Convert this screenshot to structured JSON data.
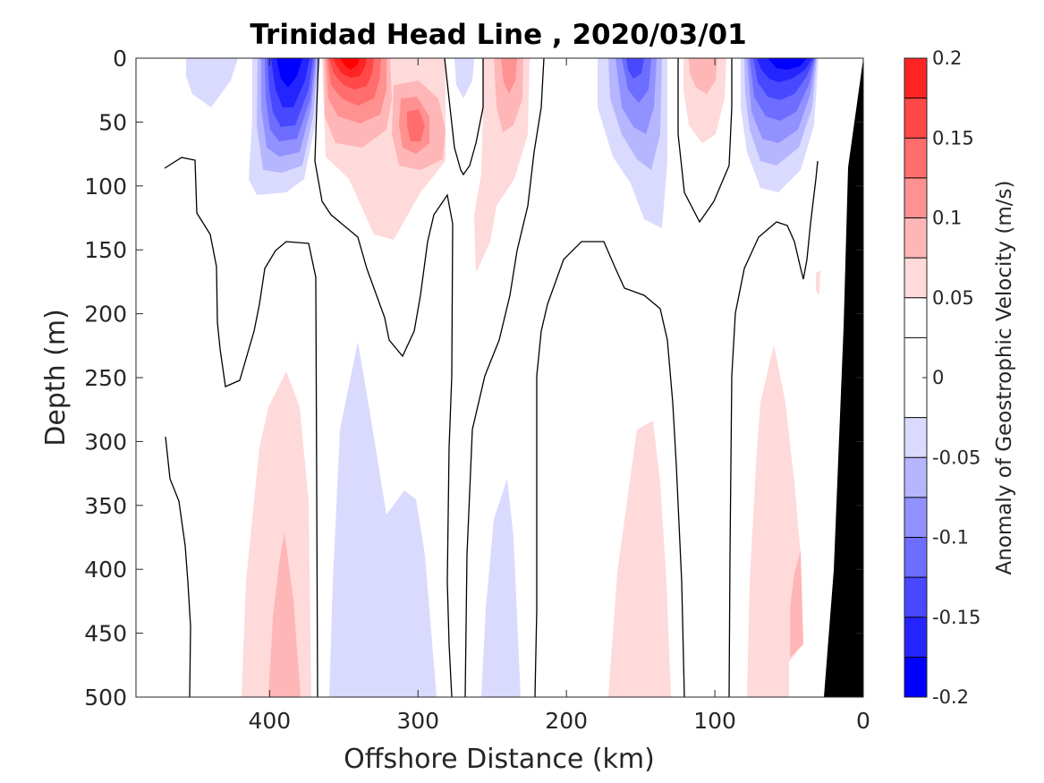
{
  "chart_data": {
    "type": "contourf",
    "title": "Trinidad Head Line , 2020/03/01",
    "xlabel": "Offshore Distance (km)",
    "ylabel": "Depth (m)",
    "colorbar_label": "Anomaly of Geostrophic Velocity (m/s)",
    "xlim": [
      490,
      0
    ],
    "ylim": [
      0,
      500
    ],
    "x_ticks": [
      400,
      300,
      200,
      100,
      0
    ],
    "x_tick_labels": [
      "400",
      "300",
      "200",
      "100",
      "0"
    ],
    "y_ticks": [
      0,
      50,
      100,
      150,
      200,
      250,
      300,
      350,
      400,
      450,
      500
    ],
    "y_tick_labels": [
      "0",
      "50",
      "100",
      "150",
      "200",
      "250",
      "300",
      "350",
      "400",
      "450",
      "500"
    ],
    "colorbar": {
      "range": [
        -0.2,
        0.2
      ],
      "levels": [
        -0.2,
        -0.175,
        -0.15,
        -0.125,
        -0.1,
        -0.075,
        -0.05,
        -0.025,
        0.025,
        0.05,
        0.075,
        0.1,
        0.125,
        0.15,
        0.175,
        0.2
      ],
      "ticks": [
        0.2,
        0.15,
        0.1,
        0.05,
        0,
        -0.05,
        -0.1,
        -0.15,
        -0.2
      ],
      "tick_labels": [
        "0.2",
        "0.15",
        "0.1",
        "0.05",
        "0",
        "-0.05",
        "-0.1",
        "-0.15",
        "-0.2"
      ],
      "colors": [
        "#0000ff",
        "#2424ff",
        "#4848ff",
        "#6d6dff",
        "#9191ff",
        "#b6b6ff",
        "#dadaff",
        "#ffffff",
        "#ffffff",
        "#ffdada",
        "#ffb6b6",
        "#ff9191",
        "#ff6d6d",
        "#ff4848",
        "#ff2424",
        "#ff0000"
      ],
      "contour_line_level": 0
    },
    "bathymetry_color": "#000000",
    "bathymetry": [
      [
        0,
        0
      ],
      [
        12,
        85
      ],
      [
        15,
        210
      ],
      [
        22,
        400
      ],
      [
        26,
        500
      ],
      [
        0,
        500
      ]
    ],
    "features": [
      {
        "sign": "negative",
        "center": [
          387,
          20
        ],
        "peak": -0.19,
        "depth_range": [
          0,
          105
        ],
        "x_range": [
          340,
          410
        ]
      },
      {
        "sign": "positive",
        "center": [
          347,
          10
        ],
        "peak": 0.19,
        "depth_range": [
          0,
          140
        ],
        "x_range": [
          290,
          370
        ]
      },
      {
        "sign": "positive",
        "center": [
          313,
          55
        ],
        "peak": 0.1,
        "depth_range": [
          20,
          90
        ],
        "x_range": [
          295,
          330
        ]
      },
      {
        "sign": "negative",
        "center": [
          140,
          30
        ],
        "peak": -0.1,
        "depth_range": [
          0,
          130
        ],
        "x_range": [
          125,
          175
        ]
      },
      {
        "sign": "positive",
        "center": [
          102,
          15
        ],
        "peak": 0.07,
        "depth_range": [
          0,
          60
        ],
        "x_range": [
          90,
          125
        ]
      },
      {
        "sign": "negative",
        "center": [
          60,
          15
        ],
        "peak": -0.19,
        "depth_range": [
          0,
          100
        ],
        "x_range": [
          35,
          100
        ]
      },
      {
        "sign": "positive",
        "center": [
          238,
          40
        ],
        "peak": 0.07,
        "depth_range": [
          0,
          165
        ],
        "x_range": [
          225,
          265
        ]
      },
      {
        "sign": "positive",
        "center": [
          385,
          430
        ],
        "peak": 0.08,
        "depth_range": [
          245,
          500
        ],
        "x_range": [
          365,
          420
        ]
      },
      {
        "sign": "negative",
        "center": [
          325,
          400
        ],
        "peak": -0.04,
        "depth_range": [
          225,
          500
        ],
        "x_range": [
          285,
          360
        ]
      },
      {
        "sign": "negative",
        "center": [
          242,
          420
        ],
        "peak": -0.04,
        "depth_range": [
          330,
          500
        ],
        "x_range": [
          230,
          260
        ]
      },
      {
        "sign": "positive",
        "center": [
          150,
          420
        ],
        "peak": 0.04,
        "depth_range": [
          285,
          500
        ],
        "x_range": [
          130,
          175
        ]
      },
      {
        "sign": "positive",
        "center": [
          65,
          420
        ],
        "peak": 0.06,
        "depth_range": [
          245,
          500
        ],
        "x_range": [
          40,
          95
        ]
      }
    ]
  }
}
